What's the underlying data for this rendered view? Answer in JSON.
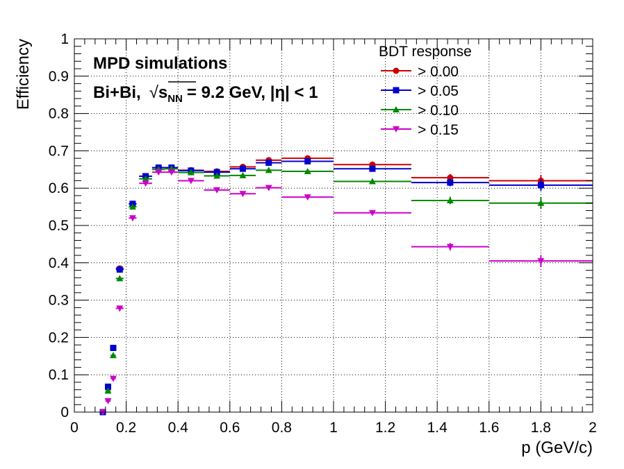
{
  "chart_data": {
    "type": "scatter",
    "title": "",
    "xlabel": "p (GeV/c)",
    "ylabel": "Efficiency",
    "xlim": [
      0,
      2
    ],
    "ylim": [
      0,
      1
    ],
    "grid": true,
    "xticks": [
      0,
      0.2,
      0.4,
      0.6,
      0.8,
      1,
      1.2,
      1.4,
      1.6,
      1.8,
      2
    ],
    "yticks": [
      0,
      0.1,
      0.2,
      0.3,
      0.4,
      0.5,
      0.6,
      0.7,
      0.8,
      0.9,
      1
    ],
    "xtick_labels": [
      "0",
      "0.2",
      "0.4",
      "0.6",
      "0.8",
      "1",
      "1.2",
      "1.4",
      "1.6",
      "1.8",
      "2"
    ],
    "ytick_labels": [
      "0",
      "0.1",
      "0.2",
      "0.3",
      "0.4",
      "0.5",
      "0.6",
      "0.7",
      "0.8",
      "0.9",
      "1"
    ],
    "annotations": {
      "line1": "MPD simulations",
      "line2_prefix": "Bi+Bi,",
      "sqrt_symbol": "√",
      "s_main": "s",
      "s_sub": "NN",
      "line2_suffix": "= 9.2 GeV, |η| < 1"
    },
    "legend": {
      "title": "BDT response",
      "position": "top-right"
    },
    "series": [
      {
        "name": "> 0.00",
        "color": "#cc0000",
        "marker": "circle",
        "points": [
          {
            "x": 0.11,
            "xerr": 0.01,
            "y": 0.0,
            "yerr": 0.0
          },
          {
            "x": 0.13,
            "xerr": 0.01,
            "y": 0.068,
            "yerr": 0.003
          },
          {
            "x": 0.15,
            "xerr": 0.01,
            "y": 0.172,
            "yerr": 0.004
          },
          {
            "x": 0.175,
            "xerr": 0.015,
            "y": 0.385,
            "yerr": 0.005
          },
          {
            "x": 0.225,
            "xerr": 0.015,
            "y": 0.558,
            "yerr": 0.005
          },
          {
            "x": 0.275,
            "xerr": 0.025,
            "y": 0.632,
            "yerr": 0.005
          },
          {
            "x": 0.325,
            "xerr": 0.025,
            "y": 0.655,
            "yerr": 0.005
          },
          {
            "x": 0.375,
            "xerr": 0.025,
            "y": 0.655,
            "yerr": 0.005
          },
          {
            "x": 0.45,
            "xerr": 0.05,
            "y": 0.648,
            "yerr": 0.005
          },
          {
            "x": 0.55,
            "xerr": 0.05,
            "y": 0.645,
            "yerr": 0.005
          },
          {
            "x": 0.65,
            "xerr": 0.05,
            "y": 0.657,
            "yerr": 0.005
          },
          {
            "x": 0.75,
            "xerr": 0.05,
            "y": 0.675,
            "yerr": 0.005
          },
          {
            "x": 0.9,
            "xerr": 0.1,
            "y": 0.68,
            "yerr": 0.005
          },
          {
            "x": 1.15,
            "xerr": 0.15,
            "y": 0.663,
            "yerr": 0.006
          },
          {
            "x": 1.45,
            "xerr": 0.15,
            "y": 0.628,
            "yerr": 0.01
          },
          {
            "x": 1.8,
            "xerr": 0.2,
            "y": 0.62,
            "yerr": 0.015
          }
        ]
      },
      {
        "name": "> 0.05",
        "color": "#0000cc",
        "marker": "square",
        "points": [
          {
            "x": 0.11,
            "xerr": 0.01,
            "y": 0.0,
            "yerr": 0.0
          },
          {
            "x": 0.13,
            "xerr": 0.01,
            "y": 0.068,
            "yerr": 0.003
          },
          {
            "x": 0.15,
            "xerr": 0.01,
            "y": 0.172,
            "yerr": 0.004
          },
          {
            "x": 0.175,
            "xerr": 0.015,
            "y": 0.382,
            "yerr": 0.005
          },
          {
            "x": 0.225,
            "xerr": 0.015,
            "y": 0.558,
            "yerr": 0.005
          },
          {
            "x": 0.275,
            "xerr": 0.025,
            "y": 0.632,
            "yerr": 0.005
          },
          {
            "x": 0.325,
            "xerr": 0.025,
            "y": 0.655,
            "yerr": 0.005
          },
          {
            "x": 0.375,
            "xerr": 0.025,
            "y": 0.655,
            "yerr": 0.005
          },
          {
            "x": 0.45,
            "xerr": 0.05,
            "y": 0.647,
            "yerr": 0.005
          },
          {
            "x": 0.55,
            "xerr": 0.05,
            "y": 0.643,
            "yerr": 0.005
          },
          {
            "x": 0.65,
            "xerr": 0.05,
            "y": 0.652,
            "yerr": 0.005
          },
          {
            "x": 0.75,
            "xerr": 0.05,
            "y": 0.668,
            "yerr": 0.005
          },
          {
            "x": 0.9,
            "xerr": 0.1,
            "y": 0.672,
            "yerr": 0.005
          },
          {
            "x": 1.15,
            "xerr": 0.15,
            "y": 0.652,
            "yerr": 0.006
          },
          {
            "x": 1.45,
            "xerr": 0.15,
            "y": 0.615,
            "yerr": 0.01
          },
          {
            "x": 1.8,
            "xerr": 0.2,
            "y": 0.608,
            "yerr": 0.015
          }
        ]
      },
      {
        "name": "> 0.10",
        "color": "#008800",
        "marker": "triangle-up",
        "points": [
          {
            "x": 0.13,
            "xerr": 0.01,
            "y": 0.057,
            "yerr": 0.003
          },
          {
            "x": 0.15,
            "xerr": 0.01,
            "y": 0.152,
            "yerr": 0.004
          },
          {
            "x": 0.175,
            "xerr": 0.015,
            "y": 0.358,
            "yerr": 0.005
          },
          {
            "x": 0.225,
            "xerr": 0.015,
            "y": 0.55,
            "yerr": 0.005
          },
          {
            "x": 0.275,
            "xerr": 0.025,
            "y": 0.625,
            "yerr": 0.005
          },
          {
            "x": 0.325,
            "xerr": 0.025,
            "y": 0.65,
            "yerr": 0.005
          },
          {
            "x": 0.375,
            "xerr": 0.025,
            "y": 0.652,
            "yerr": 0.005
          },
          {
            "x": 0.45,
            "xerr": 0.05,
            "y": 0.642,
            "yerr": 0.005
          },
          {
            "x": 0.55,
            "xerr": 0.05,
            "y": 0.633,
            "yerr": 0.005
          },
          {
            "x": 0.65,
            "xerr": 0.05,
            "y": 0.634,
            "yerr": 0.005
          },
          {
            "x": 0.75,
            "xerr": 0.05,
            "y": 0.648,
            "yerr": 0.005
          },
          {
            "x": 0.9,
            "xerr": 0.1,
            "y": 0.645,
            "yerr": 0.005
          },
          {
            "x": 1.15,
            "xerr": 0.15,
            "y": 0.618,
            "yerr": 0.006
          },
          {
            "x": 1.45,
            "xerr": 0.15,
            "y": 0.567,
            "yerr": 0.01
          },
          {
            "x": 1.8,
            "xerr": 0.2,
            "y": 0.56,
            "yerr": 0.016
          }
        ]
      },
      {
        "name": "> 0.15",
        "color": "#cc00cc",
        "marker": "triangle-down",
        "points": [
          {
            "x": 0.11,
            "xerr": 0.01,
            "y": 0.0,
            "yerr": 0.0
          },
          {
            "x": 0.13,
            "xerr": 0.01,
            "y": 0.03,
            "yerr": 0.002
          },
          {
            "x": 0.15,
            "xerr": 0.01,
            "y": 0.09,
            "yerr": 0.003
          },
          {
            "x": 0.175,
            "xerr": 0.015,
            "y": 0.278,
            "yerr": 0.005
          },
          {
            "x": 0.225,
            "xerr": 0.015,
            "y": 0.52,
            "yerr": 0.005
          },
          {
            "x": 0.275,
            "xerr": 0.025,
            "y": 0.613,
            "yerr": 0.005
          },
          {
            "x": 0.325,
            "xerr": 0.025,
            "y": 0.643,
            "yerr": 0.005
          },
          {
            "x": 0.375,
            "xerr": 0.025,
            "y": 0.643,
            "yerr": 0.005
          },
          {
            "x": 0.45,
            "xerr": 0.05,
            "y": 0.62,
            "yerr": 0.005
          },
          {
            "x": 0.55,
            "xerr": 0.05,
            "y": 0.595,
            "yerr": 0.005
          },
          {
            "x": 0.65,
            "xerr": 0.05,
            "y": 0.585,
            "yerr": 0.005
          },
          {
            "x": 0.75,
            "xerr": 0.05,
            "y": 0.601,
            "yerr": 0.005
          },
          {
            "x": 0.9,
            "xerr": 0.1,
            "y": 0.576,
            "yerr": 0.005
          },
          {
            "x": 1.15,
            "xerr": 0.15,
            "y": 0.534,
            "yerr": 0.006
          },
          {
            "x": 1.45,
            "xerr": 0.15,
            "y": 0.443,
            "yerr": 0.01
          },
          {
            "x": 1.8,
            "xerr": 0.2,
            "y": 0.405,
            "yerr": 0.016
          }
        ]
      }
    ]
  }
}
